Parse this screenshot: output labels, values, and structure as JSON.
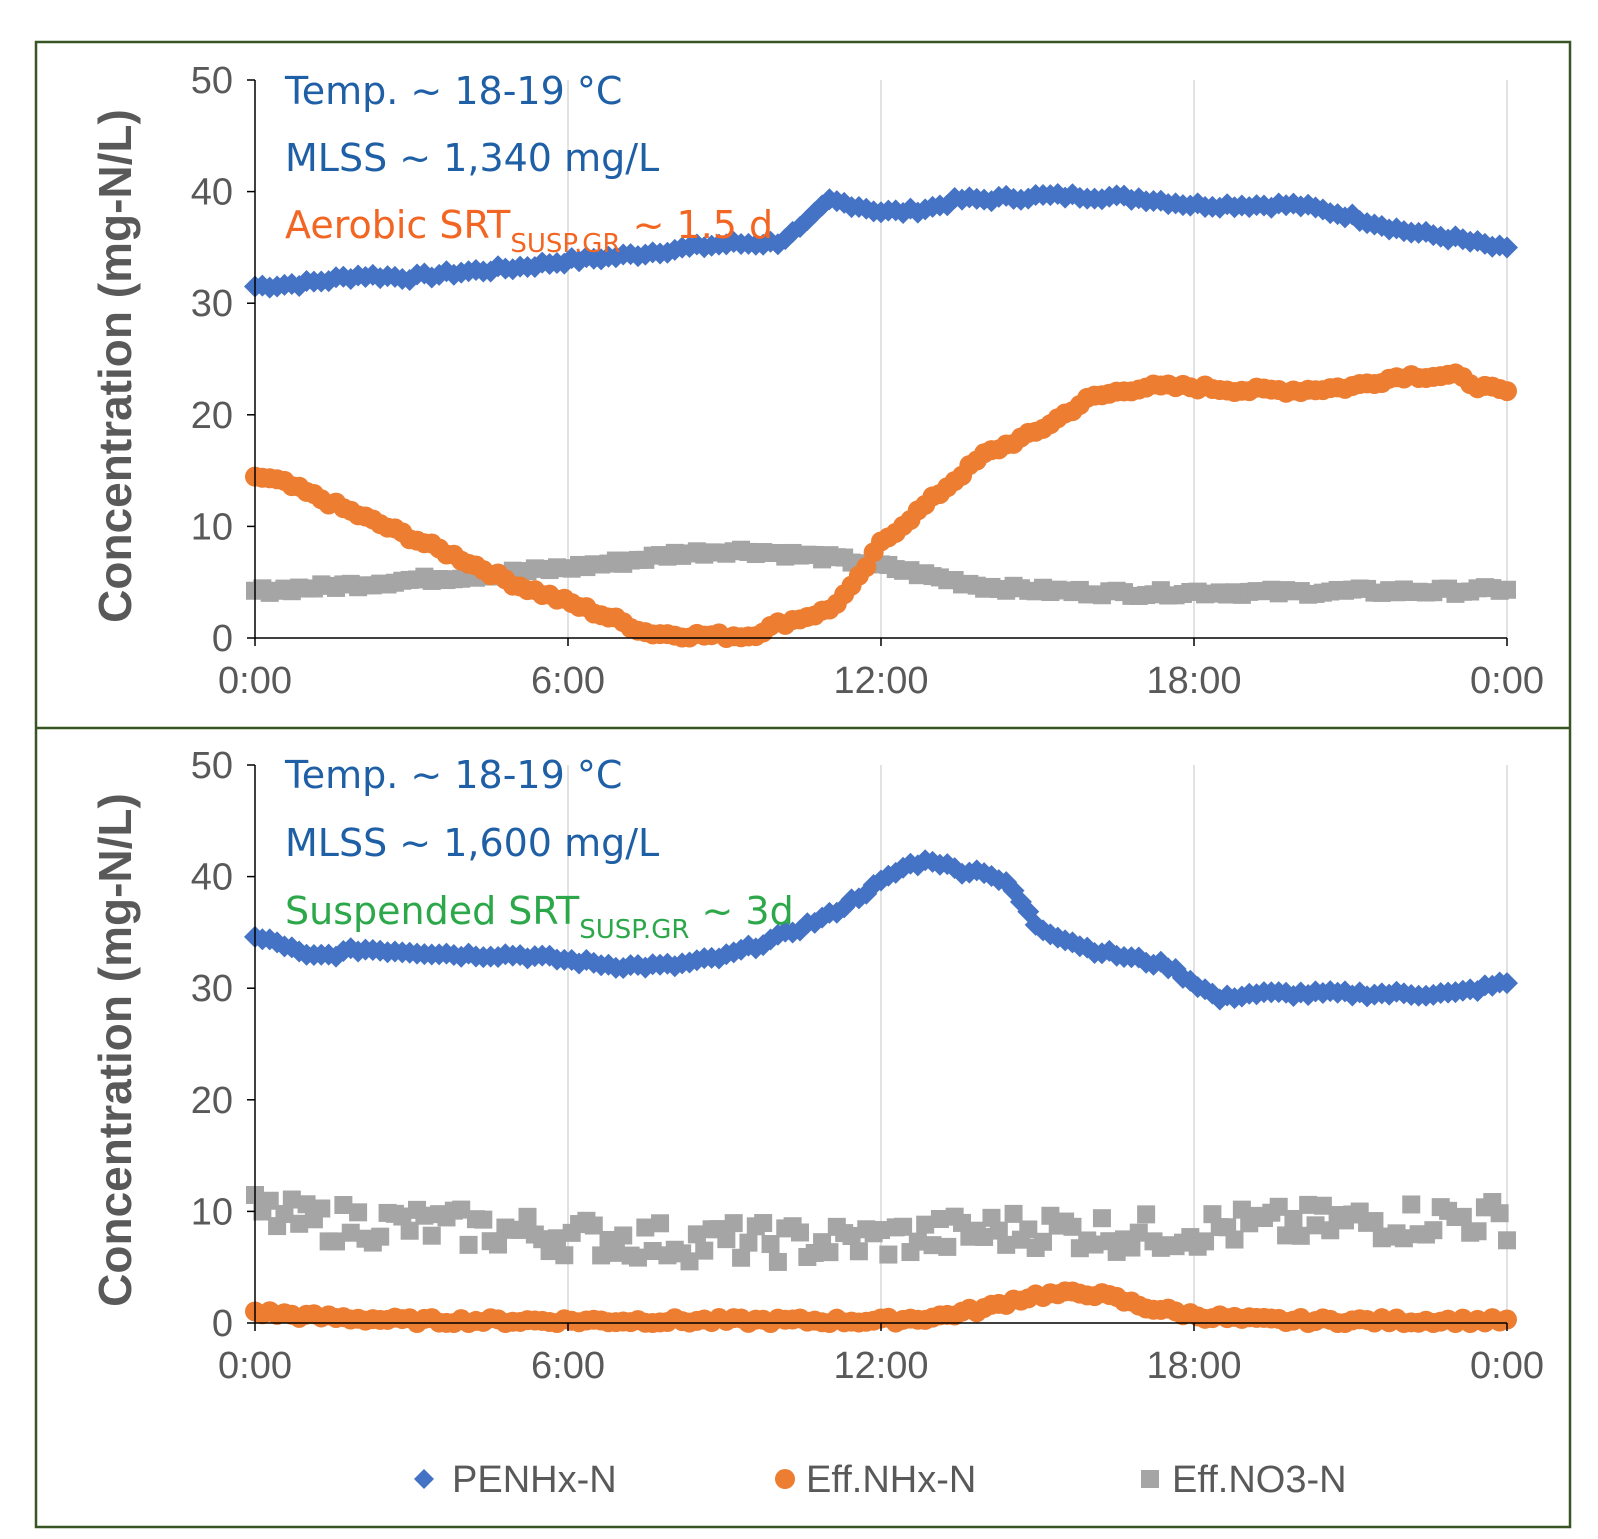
{
  "colors": {
    "frame": "#375623",
    "grid": "#d9d9d9",
    "axis": "#000000",
    "text": "#595959",
    "pe_nhx": "#4472c4",
    "eff_nhx": "#ed7d31",
    "eff_no3": "#a5a5a5",
    "annot_blue": "#1f5fa6",
    "annot_orange": "#f26522",
    "annot_green": "#2ca84a"
  },
  "legend": [
    {
      "name": "PENHx-N",
      "marker": "diamond",
      "color": "#4472c4"
    },
    {
      "name": "Eff.NHx-N",
      "marker": "circle",
      "color": "#ed7d31"
    },
    {
      "name": "Eff.NO3-N",
      "marker": "square",
      "color": "#a5a5a5"
    }
  ],
  "chart_data": [
    {
      "type": "scatter",
      "ylabel": "Concentration (mg-N/L)",
      "ylim": [
        0,
        50
      ],
      "yticks": [
        "0",
        "10",
        "20",
        "30",
        "40",
        "50"
      ],
      "xlim": [
        0,
        24
      ],
      "xticks": [
        "0:00",
        "6:00",
        "12:00",
        "18:00",
        "0:00"
      ],
      "grid": "vertical",
      "annotations": [
        {
          "text": "Temp. ~ 18-19 °C",
          "color": "#1f5fa6"
        },
        {
          "text": "MLSS ~ 1,340 mg/L",
          "color": "#1f5fa6"
        },
        {
          "text": "Aerobic SRT",
          "sub": "SUSP.GR",
          "tail": " ~ 1.5 d",
          "color": "#f26522"
        }
      ],
      "series": [
        {
          "name": "PENHx-N",
          "x": [
            0,
            1,
            2,
            3,
            4,
            5,
            6,
            7,
            8,
            9,
            10,
            10.5,
            11,
            11.5,
            12,
            12.5,
            13,
            13.5,
            14,
            15,
            16,
            17,
            18,
            19,
            20,
            21,
            22,
            23,
            24
          ],
          "y": [
            31.5,
            31.8,
            32.5,
            32.3,
            32.8,
            33.2,
            33.8,
            34.2,
            34.8,
            35.3,
            35.4,
            36.8,
            39.2,
            38.8,
            38.2,
            38.2,
            38.6,
            39.3,
            39.3,
            39.6,
            39.6,
            39.4,
            38.8,
            38.8,
            38.8,
            37.8,
            36.5,
            35.8,
            34.8
          ]
        },
        {
          "name": "Eff.NHx-N",
          "x": [
            0,
            0.5,
            1,
            2,
            3,
            4,
            5,
            6,
            7,
            7.5,
            8,
            9,
            9.5,
            10,
            11,
            11.5,
            12,
            12.5,
            13,
            13.5,
            14,
            15,
            16,
            17,
            18,
            19,
            20,
            21,
            22,
            23,
            23.5,
            24
          ],
          "y": [
            14.5,
            14.0,
            13.0,
            11.0,
            9.0,
            7.0,
            4.8,
            3.2,
            1.5,
            0.5,
            0.3,
            0.2,
            0.2,
            1.2,
            2.5,
            4.8,
            8.5,
            10.5,
            12.5,
            14.5,
            16.5,
            18.5,
            21.5,
            22.5,
            22.5,
            22.2,
            22.2,
            22.5,
            23.5,
            23.5,
            22.5,
            22.0
          ]
        },
        {
          "name": "Eff.NO3-N",
          "x": [
            0,
            1,
            2,
            3,
            4,
            5,
            6,
            7,
            8,
            9,
            9.5,
            10,
            11,
            12,
            13,
            14,
            15,
            16,
            17,
            18,
            19,
            20,
            21,
            22,
            23,
            24
          ],
          "y": [
            4.2,
            4.5,
            4.8,
            5.2,
            5.5,
            5.9,
            6.3,
            6.8,
            7.5,
            7.8,
            7.8,
            7.6,
            7.2,
            6.5,
            5.5,
            4.6,
            4.3,
            4.1,
            4.0,
            4.1,
            4.1,
            4.1,
            4.2,
            4.2,
            4.2,
            4.4
          ]
        }
      ]
    },
    {
      "type": "scatter",
      "ylabel": "Concentration (mg-N/L)",
      "ylim": [
        0,
        50
      ],
      "yticks": [
        "0",
        "10",
        "20",
        "30",
        "40",
        "50"
      ],
      "xlim": [
        0,
        24
      ],
      "xticks": [
        "0:00",
        "6:00",
        "12:00",
        "18:00",
        "0:00"
      ],
      "grid": "vertical",
      "annotations": [
        {
          "text": "Temp. ~ 18-19 °C",
          "color": "#1f5fa6"
        },
        {
          "text": "MLSS ~ 1,600 mg/L",
          "color": "#1f5fa6"
        },
        {
          "text": "Suspended SRT",
          "sub": "SUSP.GR",
          "tail": " ~ 3d",
          "color": "#2ca84a"
        }
      ],
      "series": [
        {
          "name": "PENHx-N",
          "x": [
            0,
            0.5,
            1,
            1.5,
            2,
            3,
            4,
            5,
            6,
            7,
            8,
            9,
            10,
            11,
            12,
            12.5,
            13,
            13.5,
            14,
            14.5,
            15,
            16,
            17,
            17.5,
            18,
            18.5,
            19,
            20,
            21,
            22,
            23,
            24
          ],
          "y": [
            34.5,
            34.0,
            32.8,
            33.0,
            33.5,
            33.3,
            33.0,
            33.0,
            32.5,
            32.0,
            32.0,
            32.8,
            34.5,
            36.5,
            39.5,
            41.0,
            41.5,
            40.5,
            40.5,
            39.0,
            35.5,
            33.5,
            32.5,
            32.0,
            30.5,
            29.0,
            29.5,
            29.5,
            29.5,
            29.5,
            29.5,
            30.5
          ]
        },
        {
          "name": "Eff.NHx-N",
          "x": [
            0,
            1,
            2,
            3,
            4,
            5,
            6,
            7,
            8,
            9,
            10,
            11,
            12,
            13,
            14,
            14.5,
            15,
            15.5,
            16,
            16.5,
            17,
            18,
            19,
            20,
            21,
            22,
            23,
            24
          ],
          "y": [
            1.0,
            0.6,
            0.4,
            0.2,
            0.2,
            0.2,
            0.2,
            0.2,
            0.2,
            0.2,
            0.2,
            0.2,
            0.2,
            0.5,
            1.3,
            2.0,
            2.5,
            2.6,
            2.7,
            2.2,
            1.5,
            0.7,
            0.3,
            0.2,
            0.2,
            0.2,
            0.2,
            0.2
          ]
        },
        {
          "name": "Eff.NO3-N",
          "x": [
            0,
            0.5,
            1,
            2,
            3,
            4,
            5,
            6,
            7,
            8,
            9,
            10,
            11,
            12,
            13,
            14,
            15,
            16,
            17,
            18,
            19,
            20,
            21,
            22,
            23,
            24
          ],
          "y": [
            10.0,
            9.5,
            9.0,
            9.0,
            8.8,
            8.5,
            8.2,
            7.8,
            7.5,
            7.3,
            7.3,
            7.2,
            7.2,
            7.5,
            7.8,
            8.2,
            8.5,
            8.2,
            8.0,
            8.4,
            8.6,
            8.8,
            9.0,
            9.2,
            9.5,
            9.2
          ],
          "scatter": 1.8
        }
      ]
    }
  ]
}
